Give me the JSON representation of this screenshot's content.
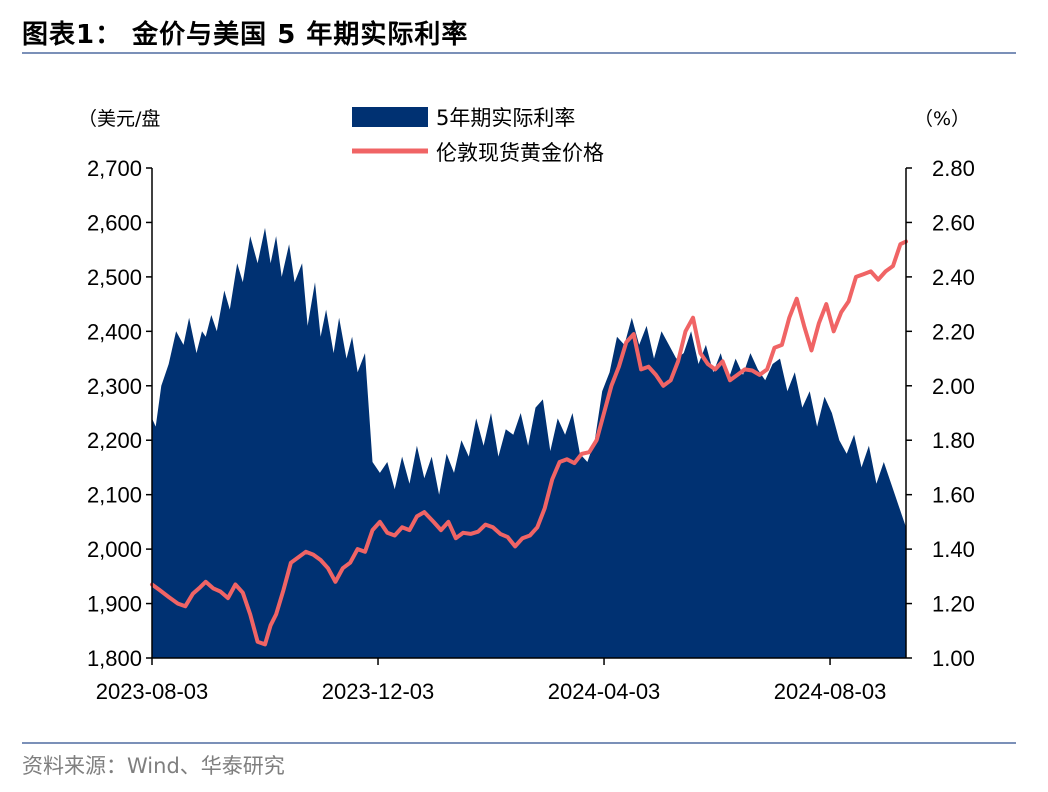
{
  "header": {
    "title": "图表1：  金价与美国 5 年期实际利率"
  },
  "footer": {
    "source": "资料来源：Wind、华泰研究"
  },
  "colors": {
    "area": "#003172",
    "line": "#f06465",
    "rule": "#7b90b8",
    "source_text": "#7f7f7f"
  },
  "chart_data": {
    "type": "area",
    "title": "",
    "left_axis": {
      "unit_label": "（美元/盘",
      "ylim": [
        1800,
        2700
      ],
      "ticks": [
        "1,800",
        "1,900",
        "2,000",
        "2,100",
        "2,200",
        "2,300",
        "2,400",
        "2,500",
        "2,600",
        "2,700"
      ],
      "tick_values": [
        1800,
        1900,
        2000,
        2100,
        2200,
        2300,
        2400,
        2500,
        2600,
        2700
      ]
    },
    "right_axis": {
      "unit_label": "（%）",
      "ylim": [
        1.0,
        2.8
      ],
      "ticks": [
        "1.00",
        "1.20",
        "1.40",
        "1.60",
        "1.80",
        "2.00",
        "2.20",
        "2.40",
        "2.60",
        "2.80"
      ],
      "tick_values": [
        1.0,
        1.2,
        1.4,
        1.6,
        1.8,
        2.0,
        2.2,
        2.4,
        2.6,
        2.8
      ]
    },
    "x_axis": {
      "ticks": [
        "2023-08-03",
        "2023-12-03",
        "2024-04-03",
        "2024-08-03"
      ],
      "range": [
        "2023-08-03",
        "2024-09-13"
      ]
    },
    "legend": {
      "placement": "top-center",
      "entries": [
        "5年期实际利率",
        "伦敦现货黄金价格"
      ]
    },
    "series": [
      {
        "name": "5年期实际利率",
        "axis": "right",
        "kind": "area",
        "x": [
          "2023-08-03",
          "2023-08-05",
          "2023-08-08",
          "2023-08-12",
          "2023-08-16",
          "2023-08-20",
          "2023-08-23",
          "2023-08-27",
          "2023-08-30",
          "2023-09-01",
          "2023-09-04",
          "2023-09-07",
          "2023-09-11",
          "2023-09-14",
          "2023-09-18",
          "2023-09-21",
          "2023-09-25",
          "2023-09-29",
          "2023-10-03",
          "2023-10-06",
          "2023-10-09",
          "2023-10-12",
          "2023-10-16",
          "2023-10-19",
          "2023-10-23",
          "2023-10-26",
          "2023-10-30",
          "2023-11-02",
          "2023-11-05",
          "2023-11-09",
          "2023-11-12",
          "2023-11-16",
          "2023-11-19",
          "2023-11-22",
          "2023-11-26",
          "2023-11-30",
          "2023-12-04",
          "2023-12-08",
          "2023-12-12",
          "2023-12-16",
          "2023-12-20",
          "2023-12-24",
          "2023-12-28",
          "2024-01-01",
          "2024-01-05",
          "2024-01-09",
          "2024-01-13",
          "2024-01-17",
          "2024-01-21",
          "2024-01-25",
          "2024-01-29",
          "2024-02-02",
          "2024-02-06",
          "2024-02-10",
          "2024-02-14",
          "2024-02-18",
          "2024-02-22",
          "2024-02-26",
          "2024-03-01",
          "2024-03-05",
          "2024-03-09",
          "2024-03-13",
          "2024-03-17",
          "2024-03-21",
          "2024-03-25",
          "2024-03-29",
          "2024-04-02",
          "2024-04-06",
          "2024-04-10",
          "2024-04-14",
          "2024-04-18",
          "2024-04-22",
          "2024-04-26",
          "2024-04-30",
          "2024-05-04",
          "2024-05-08",
          "2024-05-12",
          "2024-05-16",
          "2024-05-20",
          "2024-05-24",
          "2024-05-28",
          "2024-06-01",
          "2024-06-05",
          "2024-06-09",
          "2024-06-13",
          "2024-06-17",
          "2024-06-21",
          "2024-06-25",
          "2024-06-29",
          "2024-07-03",
          "2024-07-07",
          "2024-07-11",
          "2024-07-15",
          "2024-07-19",
          "2024-07-23",
          "2024-07-27",
          "2024-07-31",
          "2024-08-04",
          "2024-08-08",
          "2024-08-12",
          "2024-08-16",
          "2024-08-20",
          "2024-08-24",
          "2024-08-28",
          "2024-09-01",
          "2024-09-05",
          "2024-09-09",
          "2024-09-13"
        ],
        "values": [
          1.88,
          1.85,
          2.0,
          2.08,
          2.2,
          2.15,
          2.25,
          2.12,
          2.2,
          2.18,
          2.26,
          2.2,
          2.35,
          2.28,
          2.45,
          2.38,
          2.55,
          2.45,
          2.58,
          2.45,
          2.55,
          2.4,
          2.52,
          2.38,
          2.45,
          2.22,
          2.38,
          2.18,
          2.28,
          2.12,
          2.25,
          2.1,
          2.18,
          2.05,
          2.12,
          1.72,
          1.68,
          1.72,
          1.62,
          1.74,
          1.64,
          1.78,
          1.66,
          1.74,
          1.6,
          1.75,
          1.68,
          1.8,
          1.74,
          1.88,
          1.78,
          1.9,
          1.74,
          1.84,
          1.82,
          1.9,
          1.78,
          1.92,
          1.95,
          1.76,
          1.88,
          1.82,
          1.9,
          1.75,
          1.72,
          1.8,
          1.98,
          2.05,
          2.18,
          2.15,
          2.25,
          2.15,
          2.22,
          2.1,
          2.2,
          2.15,
          2.1,
          2.12,
          2.2,
          2.08,
          2.15,
          2.05,
          2.12,
          2.02,
          2.1,
          2.04,
          2.12,
          2.06,
          2.02,
          2.08,
          2.1,
          1.98,
          2.05,
          1.92,
          1.98,
          1.85,
          1.96,
          1.9,
          1.8,
          1.75,
          1.82,
          1.7,
          1.78,
          1.64,
          1.72,
          1.64,
          1.56,
          1.48
        ]
      },
      {
        "name": "伦敦现货黄金价格",
        "axis": "left",
        "kind": "line",
        "x": [
          "2023-08-03",
          "2023-08-07",
          "2023-08-12",
          "2023-08-17",
          "2023-08-21",
          "2023-08-25",
          "2023-08-29",
          "2023-09-01",
          "2023-09-05",
          "2023-09-09",
          "2023-09-13",
          "2023-09-17",
          "2023-09-21",
          "2023-09-25",
          "2023-09-29",
          "2023-10-03",
          "2023-10-06",
          "2023-10-09",
          "2023-10-13",
          "2023-10-17",
          "2023-10-21",
          "2023-10-25",
          "2023-10-29",
          "2023-11-02",
          "2023-11-06",
          "2023-11-10",
          "2023-11-14",
          "2023-11-18",
          "2023-11-22",
          "2023-11-26",
          "2023-11-30",
          "2023-12-04",
          "2023-12-08",
          "2023-12-12",
          "2023-12-16",
          "2023-12-20",
          "2023-12-24",
          "2023-12-28",
          "2024-01-02",
          "2024-01-06",
          "2024-01-10",
          "2024-01-14",
          "2024-01-18",
          "2024-01-22",
          "2024-01-26",
          "2024-01-30",
          "2024-02-03",
          "2024-02-07",
          "2024-02-11",
          "2024-02-15",
          "2024-02-19",
          "2024-02-23",
          "2024-02-27",
          "2024-03-02",
          "2024-03-06",
          "2024-03-10",
          "2024-03-14",
          "2024-03-18",
          "2024-03-22",
          "2024-03-26",
          "2024-03-30",
          "2024-04-03",
          "2024-04-07",
          "2024-04-11",
          "2024-04-15",
          "2024-04-19",
          "2024-04-23",
          "2024-04-27",
          "2024-05-01",
          "2024-05-05",
          "2024-05-09",
          "2024-05-13",
          "2024-05-17",
          "2024-05-21",
          "2024-05-25",
          "2024-05-29",
          "2024-06-02",
          "2024-06-06",
          "2024-06-10",
          "2024-06-14",
          "2024-06-18",
          "2024-06-22",
          "2024-06-26",
          "2024-06-30",
          "2024-07-04",
          "2024-07-08",
          "2024-07-12",
          "2024-07-16",
          "2024-07-20",
          "2024-07-24",
          "2024-07-28",
          "2024-08-01",
          "2024-08-05",
          "2024-08-09",
          "2024-08-13",
          "2024-08-17",
          "2024-08-21",
          "2024-08-25",
          "2024-08-29",
          "2024-09-02",
          "2024-09-06",
          "2024-09-10",
          "2024-09-13"
        ],
        "values": [
          1935,
          1925,
          1912,
          1900,
          1895,
          1918,
          1930,
          1940,
          1928,
          1922,
          1910,
          1935,
          1920,
          1880,
          1830,
          1825,
          1860,
          1880,
          1925,
          1975,
          1985,
          1995,
          1990,
          1980,
          1965,
          1940,
          1965,
          1975,
          2000,
          1995,
          2035,
          2050,
          2030,
          2025,
          2040,
          2035,
          2060,
          2068,
          2050,
          2035,
          2050,
          2020,
          2030,
          2028,
          2032,
          2045,
          2040,
          2028,
          2022,
          2005,
          2020,
          2025,
          2040,
          2075,
          2128,
          2160,
          2165,
          2158,
          2175,
          2178,
          2200,
          2250,
          2300,
          2335,
          2380,
          2395,
          2330,
          2335,
          2320,
          2300,
          2310,
          2345,
          2400,
          2425,
          2360,
          2340,
          2330,
          2345,
          2310,
          2320,
          2330,
          2328,
          2320,
          2330,
          2370,
          2375,
          2425,
          2460,
          2410,
          2365,
          2415,
          2450,
          2400,
          2435,
          2455,
          2500,
          2505,
          2510,
          2495,
          2510,
          2520,
          2560,
          2565
        ]
      }
    ]
  }
}
